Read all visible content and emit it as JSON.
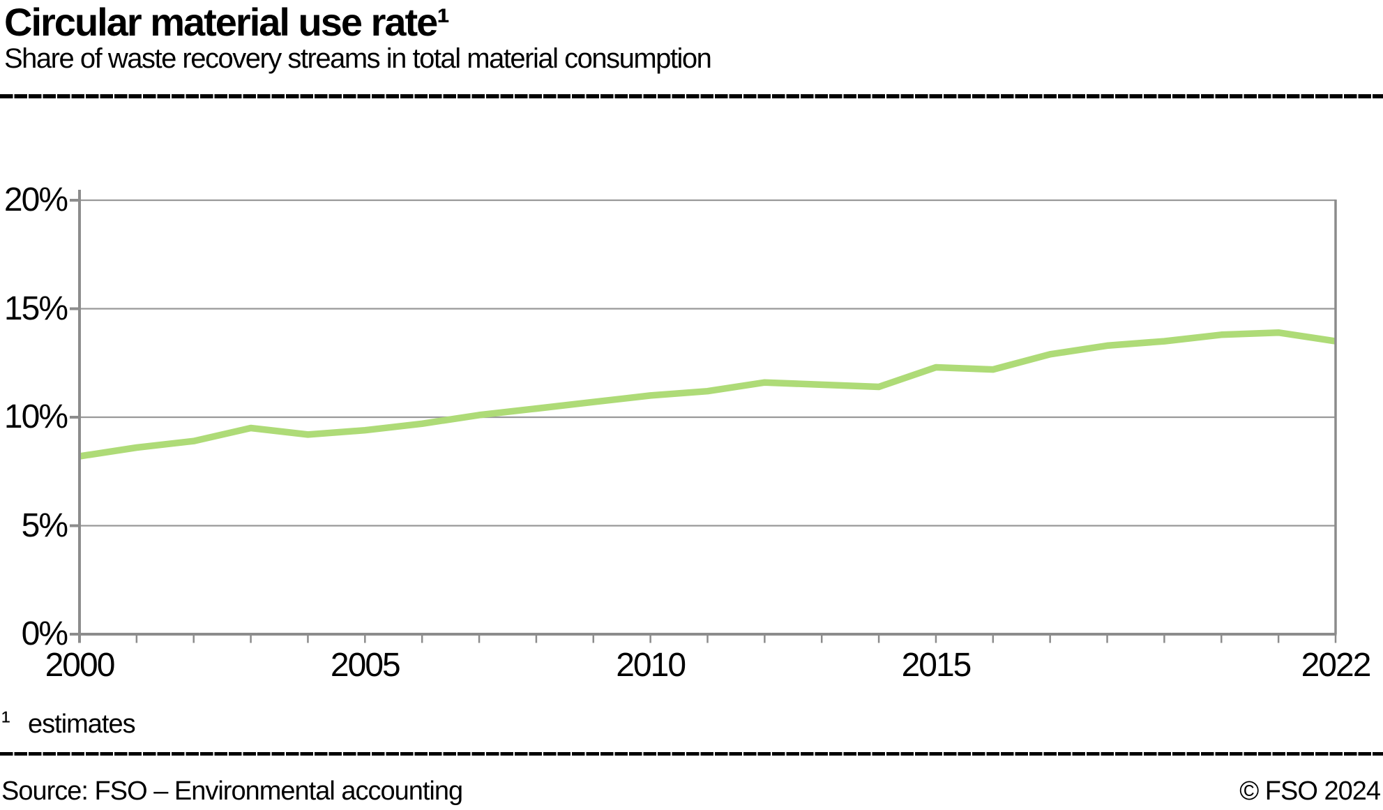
{
  "header": {
    "title": "Circular material use rate¹",
    "subtitle": "Share of waste recovery streams in total material consumption"
  },
  "chart_data": {
    "type": "line",
    "title": "Circular material use rate",
    "x": [
      2000,
      2001,
      2002,
      2003,
      2004,
      2005,
      2006,
      2007,
      2008,
      2009,
      2010,
      2011,
      2012,
      2013,
      2014,
      2015,
      2016,
      2017,
      2018,
      2019,
      2020,
      2021,
      2022
    ],
    "series": [
      {
        "name": "Circular material use rate (estimates)",
        "color": "#aedb77",
        "values": [
          8.2,
          8.6,
          8.9,
          9.5,
          9.2,
          9.4,
          9.7,
          10.1,
          10.4,
          10.7,
          11.0,
          11.2,
          11.6,
          11.5,
          11.4,
          12.3,
          12.2,
          12.9,
          13.3,
          13.5,
          13.8,
          13.9,
          13.5
        ]
      }
    ],
    "xlabel": "",
    "ylabel": "",
    "xlim": [
      2000,
      2022
    ],
    "ylim": [
      0,
      20
    ],
    "y_ticks": [
      {
        "value": 0,
        "label": "0%"
      },
      {
        "value": 5,
        "label": "5%"
      },
      {
        "value": 10,
        "label": "10%"
      },
      {
        "value": 15,
        "label": "15%"
      },
      {
        "value": 20,
        "label": "20%"
      }
    ],
    "x_ticks": [
      {
        "value": 2000,
        "label": "2000"
      },
      {
        "value": 2005,
        "label": "2005"
      },
      {
        "value": 2010,
        "label": "2010"
      },
      {
        "value": 2015,
        "label": "2015"
      },
      {
        "value": 2022,
        "label": "2022"
      }
    ],
    "x_minor_tick_step": 1,
    "grid": "horizontal",
    "legend": "none",
    "axis_color": "#8c8c8c",
    "grid_color": "#999999"
  },
  "footnote": {
    "marker": "¹",
    "text": "estimates"
  },
  "footer": {
    "source": "Source: FSO – Environmental accounting",
    "copyright": "© FSO 2024"
  }
}
